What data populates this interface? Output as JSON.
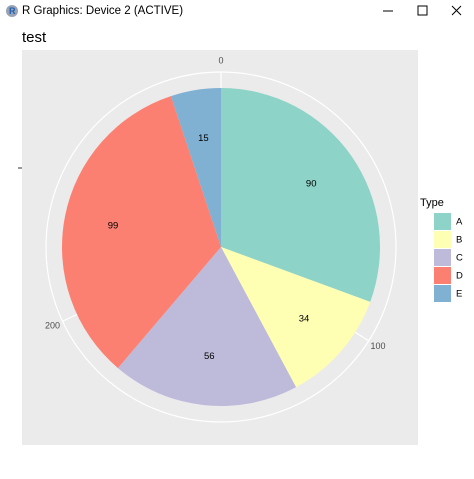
{
  "window": {
    "title": "R Graphics: Device 2 (ACTIVE)"
  },
  "chart_data": {
    "type": "pie",
    "title": "test",
    "categories": [
      "A",
      "B",
      "C",
      "D",
      "E"
    ],
    "values": [
      90,
      34,
      56,
      99,
      15
    ],
    "colors": [
      "#8dd3c7",
      "#ffffb3",
      "#bebada",
      "#fb8072",
      "#80b1d3"
    ],
    "legend_title": "Type",
    "xlim": [
      0,
      294
    ],
    "xticks": [
      0,
      100,
      200
    ],
    "grid": true
  }
}
